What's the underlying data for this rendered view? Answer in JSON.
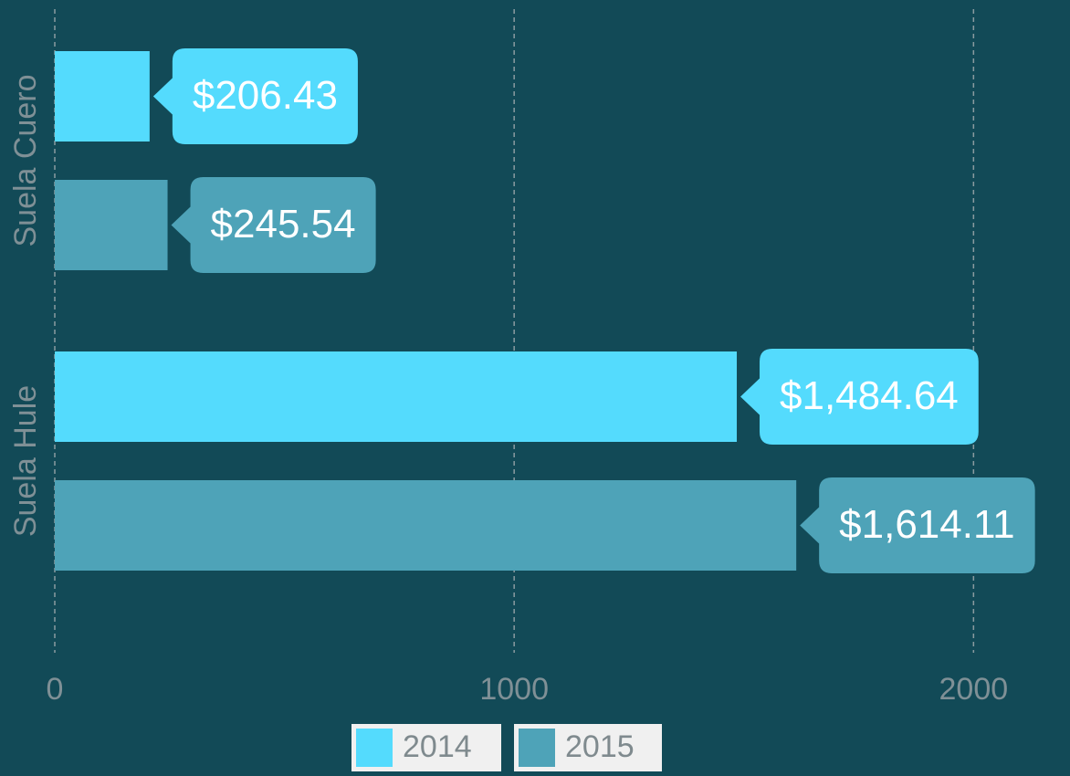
{
  "chart_data": {
    "type": "hbar",
    "categories": [
      "Suela Cuero",
      "Suela Hule"
    ],
    "series": [
      {
        "name": "2014",
        "color": "#54dbfd",
        "values": [
          206.43,
          1484.64
        ],
        "value_labels": [
          "$206.43",
          "$1,484.64"
        ]
      },
      {
        "name": "2015",
        "color": "#4ea3b8",
        "values": [
          245.54,
          1614.11
        ],
        "value_labels": [
          "$245.54",
          "$1,614.11"
        ]
      }
    ],
    "xlim": [
      0,
      2210
    ],
    "xticks": [
      0,
      1000,
      2000
    ],
    "grid": true,
    "legend": "bottom"
  }
}
